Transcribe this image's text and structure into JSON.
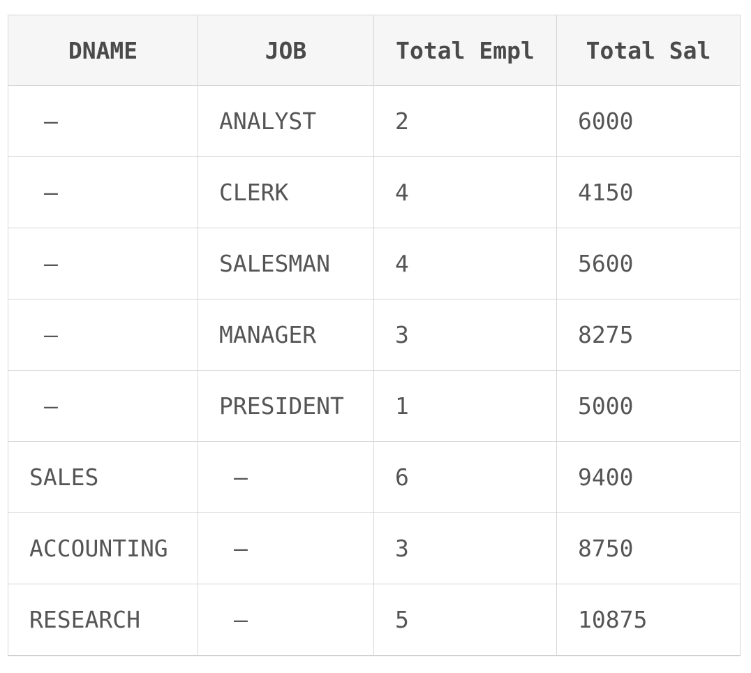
{
  "chart_data": {
    "type": "table",
    "title": "",
    "columns": [
      "DNAME",
      "JOB",
      "Total Empl",
      "Total Sal"
    ],
    "null_display": "—",
    "rows": [
      [
        "—",
        "ANALYST",
        "2",
        "6000"
      ],
      [
        "—",
        "CLERK",
        "4",
        "4150"
      ],
      [
        "—",
        "SALESMAN",
        "4",
        "5600"
      ],
      [
        "—",
        "MANAGER",
        "3",
        "8275"
      ],
      [
        "—",
        "PRESIDENT",
        "1",
        "5000"
      ],
      [
        "SALES",
        "—",
        "6",
        "9400"
      ],
      [
        "ACCOUNTING",
        "—",
        "3",
        "8750"
      ],
      [
        "RESEARCH",
        "—",
        "5",
        "10875"
      ]
    ]
  },
  "colors": {
    "header_background": "#f6f6f7",
    "header_text": "#4a4a4a",
    "body_text": "#555555",
    "grid_border": "#d7d7d7",
    "bottom_border": "#d0d0d0",
    "page_background": "#ffffff"
  }
}
